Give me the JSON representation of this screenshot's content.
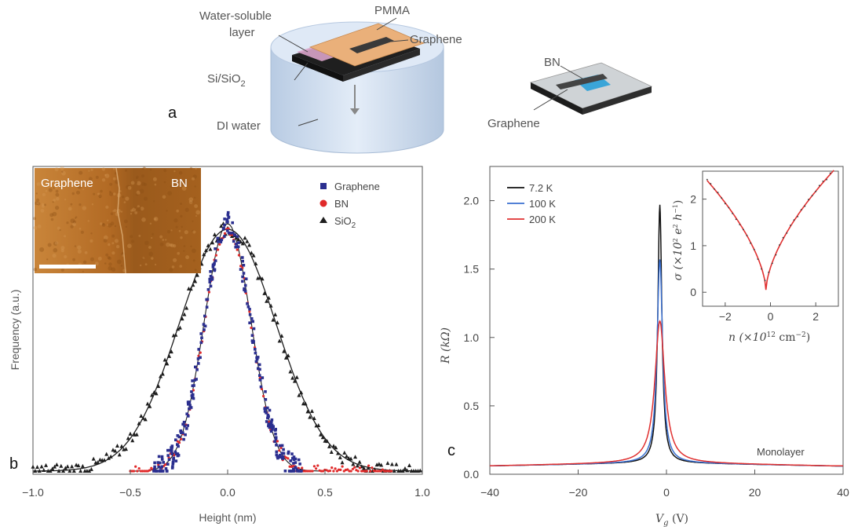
{
  "panel_a": {
    "label": "a",
    "labels": {
      "water_soluble_1": "Water-soluble",
      "water_soluble_2": "layer",
      "pmma": "PMMA",
      "graphene_top": "Graphene",
      "sio2_base": "Si/SiO",
      "sio2_sub": "2",
      "di_water": "DI water",
      "bn": "BN",
      "graphene_right": "Graphene"
    }
  },
  "panel_b": {
    "label": "b",
    "inset": {
      "left_text": "Graphene",
      "right_text": "BN"
    }
  },
  "panel_c": {
    "label": "c",
    "annotation": "Monolayer"
  },
  "colors": {
    "graphene": "#2b2f8f",
    "bn": "#e02a2a",
    "sio2": "#1e1e1e",
    "t72": "#111111",
    "t100": "#3a6fd0",
    "t200": "#e03030"
  },
  "chart_data": [
    {
      "type": "scatter",
      "xlabel": "Height (nm)",
      "ylabel": "Frequency (a.u.)",
      "xlim": [
        -1.0,
        1.0
      ],
      "xticks": [
        "−1.0",
        "−0.5",
        "0.0",
        "0.5",
        "1.0"
      ],
      "legend_position": "top-right",
      "series": [
        {
          "name": "Graphene",
          "sigma": 0.12,
          "xrange": [
            -0.38,
            0.38
          ],
          "marker": "square"
        },
        {
          "name": "BN",
          "sigma": 0.12,
          "xrange": [
            -0.5,
            0.85
          ],
          "marker": "circle"
        },
        {
          "name": "SiO",
          "name_sub": "2",
          "sigma": 0.25,
          "xrange": [
            -1.0,
            1.0
          ],
          "marker": "triangle"
        }
      ]
    },
    {
      "type": "line",
      "xlabel": "V",
      "xlabel_sub": "g",
      "xlabel_unit": " (V)",
      "ylabel": "R (kΩ)",
      "xlim": [
        -40,
        40
      ],
      "ylim": [
        0,
        2.25
      ],
      "xticks": [
        "−40",
        "−20",
        "0",
        "20",
        "40"
      ],
      "yticks": [
        "0.0",
        "0.5",
        "1.0",
        "1.5",
        "2.0"
      ],
      "legend_position": "top-left",
      "series": [
        {
          "name": "7.2 K",
          "peak": 1.97,
          "x0": -1.5
        },
        {
          "name": "100 K",
          "peak": 1.57,
          "x0": -1.5
        },
        {
          "name": "200 K",
          "peak": 1.12,
          "x0": -1.5
        }
      ]
    },
    {
      "type": "line",
      "inset": true,
      "xlabel": "n (×10",
      "xlabel_sup": "12",
      "xlabel_tail": " cm",
      "xlabel_sup2": "−2",
      "xlabel_close": ")",
      "ylabel": "σ (×10",
      "ylabel_sup": "2",
      "ylabel_tail": " e",
      "ylabel_sup2": "2",
      "ylabel_h": " h",
      "ylabel_sup3": "−1",
      "ylabel_close": ")",
      "xlim": [
        -3,
        3
      ],
      "ylim": [
        -0.3,
        2.6
      ],
      "xticks": [
        "−2",
        "0",
        "2"
      ],
      "yticks": [
        "0",
        "1",
        "2"
      ],
      "series": [
        {
          "name": "",
          "min_at": -0.2,
          "end_value": 2.4
        }
      ]
    }
  ]
}
